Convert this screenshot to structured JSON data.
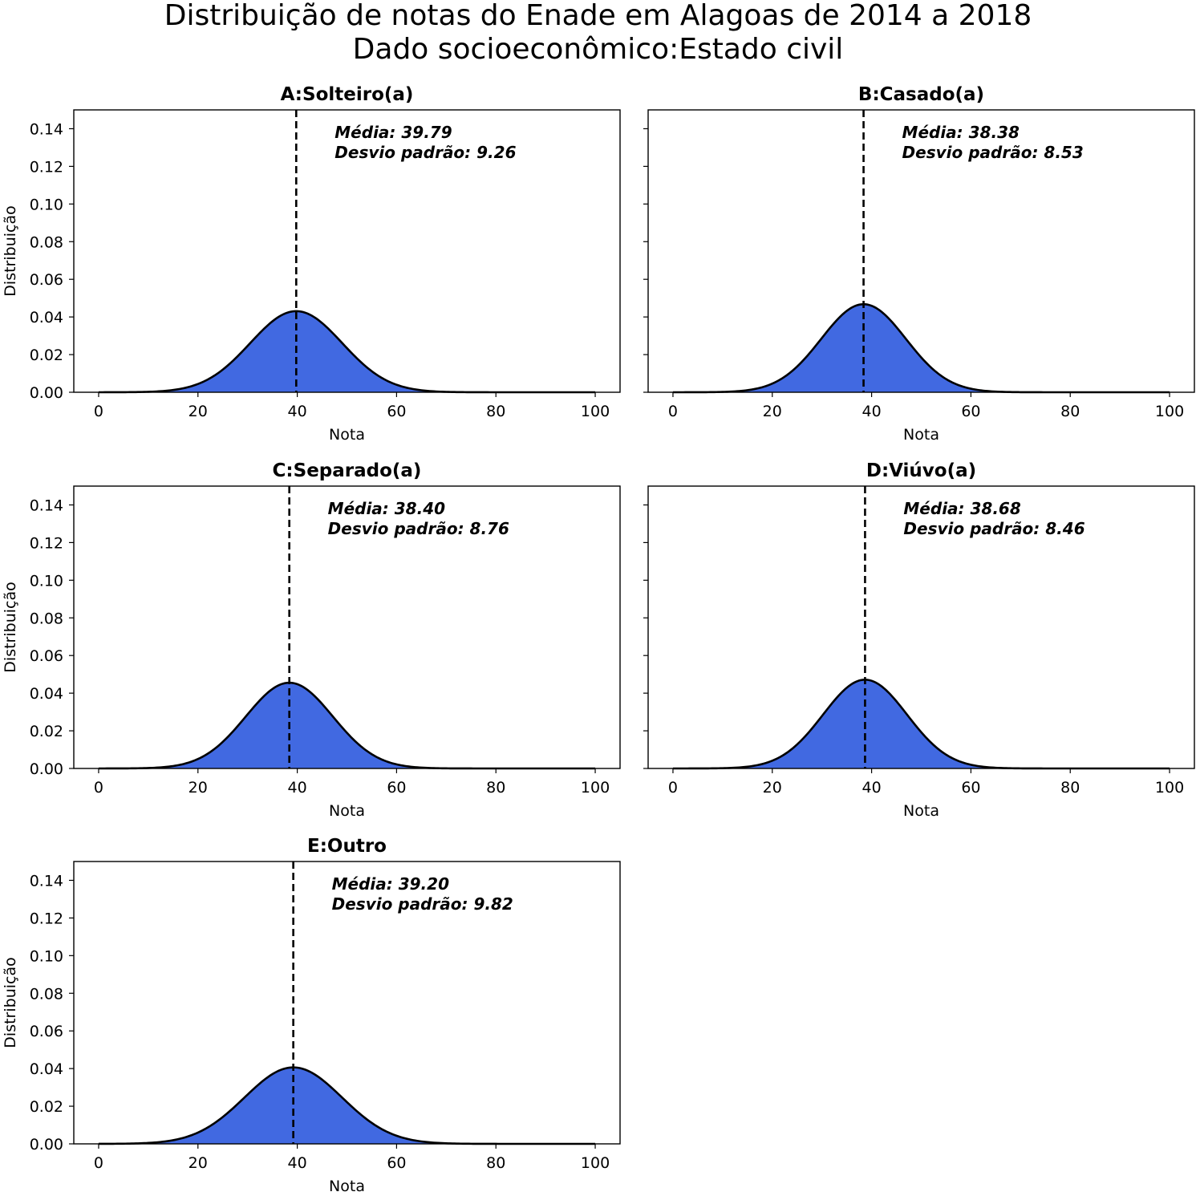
{
  "figure": {
    "title_line1": "Distribuição de notas do Enade em Alagoas de 2014 a 2018",
    "title_line2": "Dado socioeconômico:Estado civil"
  },
  "colors": {
    "fill": "#4169e1",
    "curve": "#000000",
    "mean_line": "#000000"
  },
  "chart_data": [
    {
      "type": "area",
      "title": "A:Solteiro(a)",
      "xlabel": "Nota",
      "ylabel": "Distribuição",
      "xlim": [
        -5,
        105
      ],
      "ylim": [
        0,
        0.15
      ],
      "xticks": [
        0,
        20,
        40,
        60,
        80,
        100
      ],
      "yticks": [
        0.0,
        0.02,
        0.04,
        0.06,
        0.08,
        0.1,
        0.12,
        0.14
      ],
      "xtick_labels": [
        "0",
        "20",
        "40",
        "60",
        "80",
        "100"
      ],
      "ytick_labels": [
        "0.00",
        "0.02",
        "0.04",
        "0.06",
        "0.08",
        "0.10",
        "0.12",
        "0.14"
      ],
      "mean": 39.79,
      "std": 9.26,
      "annotation_mean": "Média: 39.79",
      "annotation_std": "Desvio padrão: 9.26",
      "x_range": [
        0,
        100
      ],
      "grid": false
    },
    {
      "type": "area",
      "title": "B:Casado(a)",
      "xlabel": "Nota",
      "ylabel": "",
      "xlim": [
        -5,
        105
      ],
      "ylim": [
        0,
        0.15
      ],
      "xticks": [
        0,
        20,
        40,
        60,
        80,
        100
      ],
      "yticks": [
        0.0,
        0.02,
        0.04,
        0.06,
        0.08,
        0.1,
        0.12,
        0.14
      ],
      "xtick_labels": [
        "0",
        "20",
        "40",
        "60",
        "80",
        "100"
      ],
      "ytick_labels": [],
      "mean": 38.38,
      "std": 8.53,
      "annotation_mean": "Média: 38.38",
      "annotation_std": "Desvio padrão: 8.53",
      "x_range": [
        0,
        100
      ],
      "grid": false
    },
    {
      "type": "area",
      "title": "C:Separado(a)",
      "xlabel": "Nota",
      "ylabel": "Distribuição",
      "xlim": [
        -5,
        105
      ],
      "ylim": [
        0,
        0.15
      ],
      "xticks": [
        0,
        20,
        40,
        60,
        80,
        100
      ],
      "yticks": [
        0.0,
        0.02,
        0.04,
        0.06,
        0.08,
        0.1,
        0.12,
        0.14
      ],
      "xtick_labels": [
        "0",
        "20",
        "40",
        "60",
        "80",
        "100"
      ],
      "ytick_labels": [
        "0.00",
        "0.02",
        "0.04",
        "0.06",
        "0.08",
        "0.10",
        "0.12",
        "0.14"
      ],
      "mean": 38.4,
      "std": 8.76,
      "annotation_mean": "Média: 38.40",
      "annotation_std": "Desvio padrão: 8.76",
      "x_range": [
        0,
        100
      ],
      "grid": false
    },
    {
      "type": "area",
      "title": "D:Viúvo(a)",
      "xlabel": "Nota",
      "ylabel": "",
      "xlim": [
        -5,
        105
      ],
      "ylim": [
        0,
        0.15
      ],
      "xticks": [
        0,
        20,
        40,
        60,
        80,
        100
      ],
      "yticks": [
        0.0,
        0.02,
        0.04,
        0.06,
        0.08,
        0.1,
        0.12,
        0.14
      ],
      "xtick_labels": [
        "0",
        "20",
        "40",
        "60",
        "80",
        "100"
      ],
      "ytick_labels": [],
      "mean": 38.68,
      "std": 8.46,
      "annotation_mean": "Média: 38.68",
      "annotation_std": "Desvio padrão: 8.46",
      "x_range": [
        0,
        100
      ],
      "grid": false
    },
    {
      "type": "area",
      "title": "E:Outro",
      "xlabel": "Nota",
      "ylabel": "Distribuição",
      "xlim": [
        -5,
        105
      ],
      "ylim": [
        0,
        0.15
      ],
      "xticks": [
        0,
        20,
        40,
        60,
        80,
        100
      ],
      "yticks": [
        0.0,
        0.02,
        0.04,
        0.06,
        0.08,
        0.1,
        0.12,
        0.14
      ],
      "xtick_labels": [
        "0",
        "20",
        "40",
        "60",
        "80",
        "100"
      ],
      "ytick_labels": [
        "0.00",
        "0.02",
        "0.04",
        "0.06",
        "0.08",
        "0.10",
        "0.12",
        "0.14"
      ],
      "mean": 39.2,
      "std": 9.82,
      "annotation_mean": "Média: 39.20",
      "annotation_std": "Desvio padrão: 9.82",
      "x_range": [
        0,
        100
      ],
      "grid": false
    }
  ]
}
